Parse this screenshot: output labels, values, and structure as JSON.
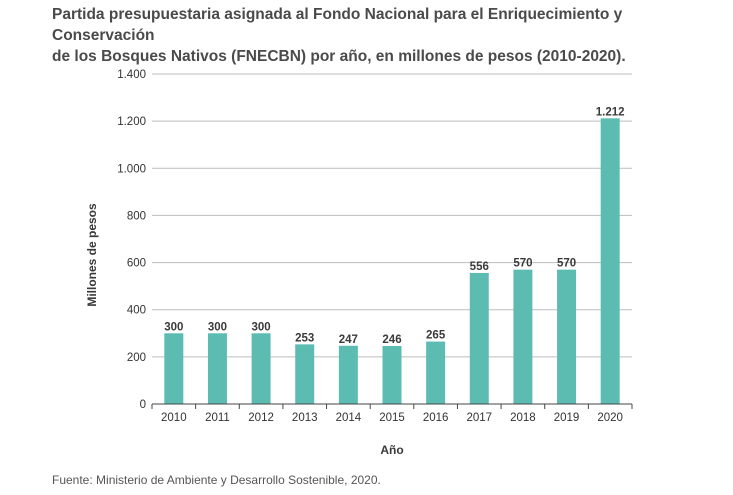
{
  "title_lines": [
    "Partida presupuestaria asignada al Fondo Nacional para el Enriquecimiento y Conservación",
    "de los Bosques Nativos (FNECBN) por año, en millones de pesos (2010-2020)."
  ],
  "source": "Fuente: Ministerio de Ambiente y Desarrollo Sostenible, 2020.",
  "chart_data": {
    "type": "bar",
    "title": "Partida presupuestaria asignada al Fondo Nacional para el Enriquecimiento y Conservación de los Bosques Nativos (FNECBN) por año, en millones de pesos (2010-2020).",
    "xlabel": "Año",
    "ylabel": "Millones de pesos",
    "categories": [
      "2010",
      "2011",
      "2012",
      "2013",
      "2014",
      "2015",
      "2016",
      "2017",
      "2018",
      "2019",
      "2020"
    ],
    "values": [
      300,
      300,
      300,
      253,
      247,
      246,
      265,
      556,
      570,
      570,
      1212
    ],
    "value_labels": [
      "300",
      "300",
      "300",
      "253",
      "247",
      "246",
      "265",
      "556",
      "570",
      "570",
      "1.212"
    ],
    "ylim": [
      0,
      1400
    ],
    "yticks": [
      0,
      200,
      400,
      600,
      800,
      1000,
      1200,
      1400
    ],
    "ytick_labels": [
      "0",
      "200",
      "400",
      "600",
      "800",
      "1.000",
      "1.200",
      "1.400"
    ],
    "grid": true,
    "bar_color": "#5dbcb2"
  }
}
